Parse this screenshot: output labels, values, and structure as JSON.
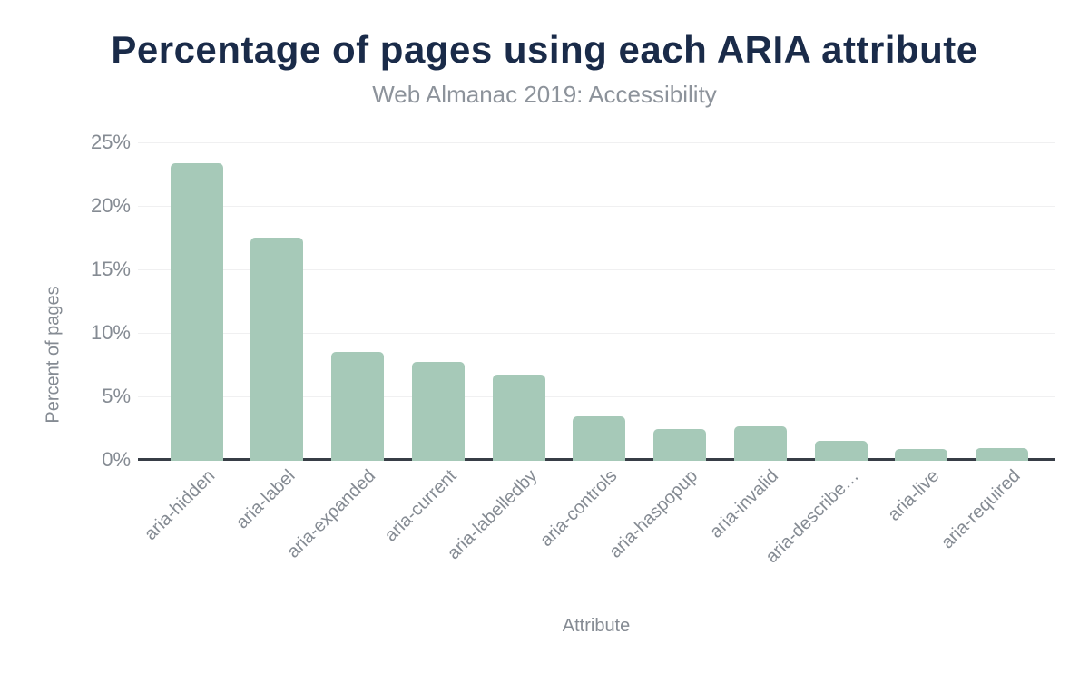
{
  "chart_data": {
    "type": "bar",
    "title": "Percentage of pages using each ARIA attribute",
    "subtitle": "Web Almanac 2019: Accessibility",
    "xlabel": "Attribute",
    "ylabel": "Percent of pages",
    "categories": [
      "aria-hidden",
      "aria-label",
      "aria-expanded",
      "aria-current",
      "aria-labelledby",
      "aria-controls",
      "aria-haspopup",
      "aria-invalid",
      "aria-describe…",
      "aria-live",
      "aria-required"
    ],
    "values": [
      23.4,
      17.6,
      8.6,
      7.8,
      6.8,
      3.5,
      2.5,
      2.7,
      1.6,
      0.9,
      1.0
    ],
    "ylim": [
      0,
      25
    ],
    "yticks": [
      0,
      5,
      10,
      15,
      20,
      25
    ],
    "ytick_suffix": "%",
    "grid": true,
    "legend": "none",
    "colors": {
      "bar": "#a6c9b8",
      "title": "#1a2b49",
      "subtitle": "#8d939b",
      "axis_text": "#858b93",
      "gridline": "#f0f0f1",
      "baseline": "#373d46",
      "background": "#ffffff"
    }
  }
}
